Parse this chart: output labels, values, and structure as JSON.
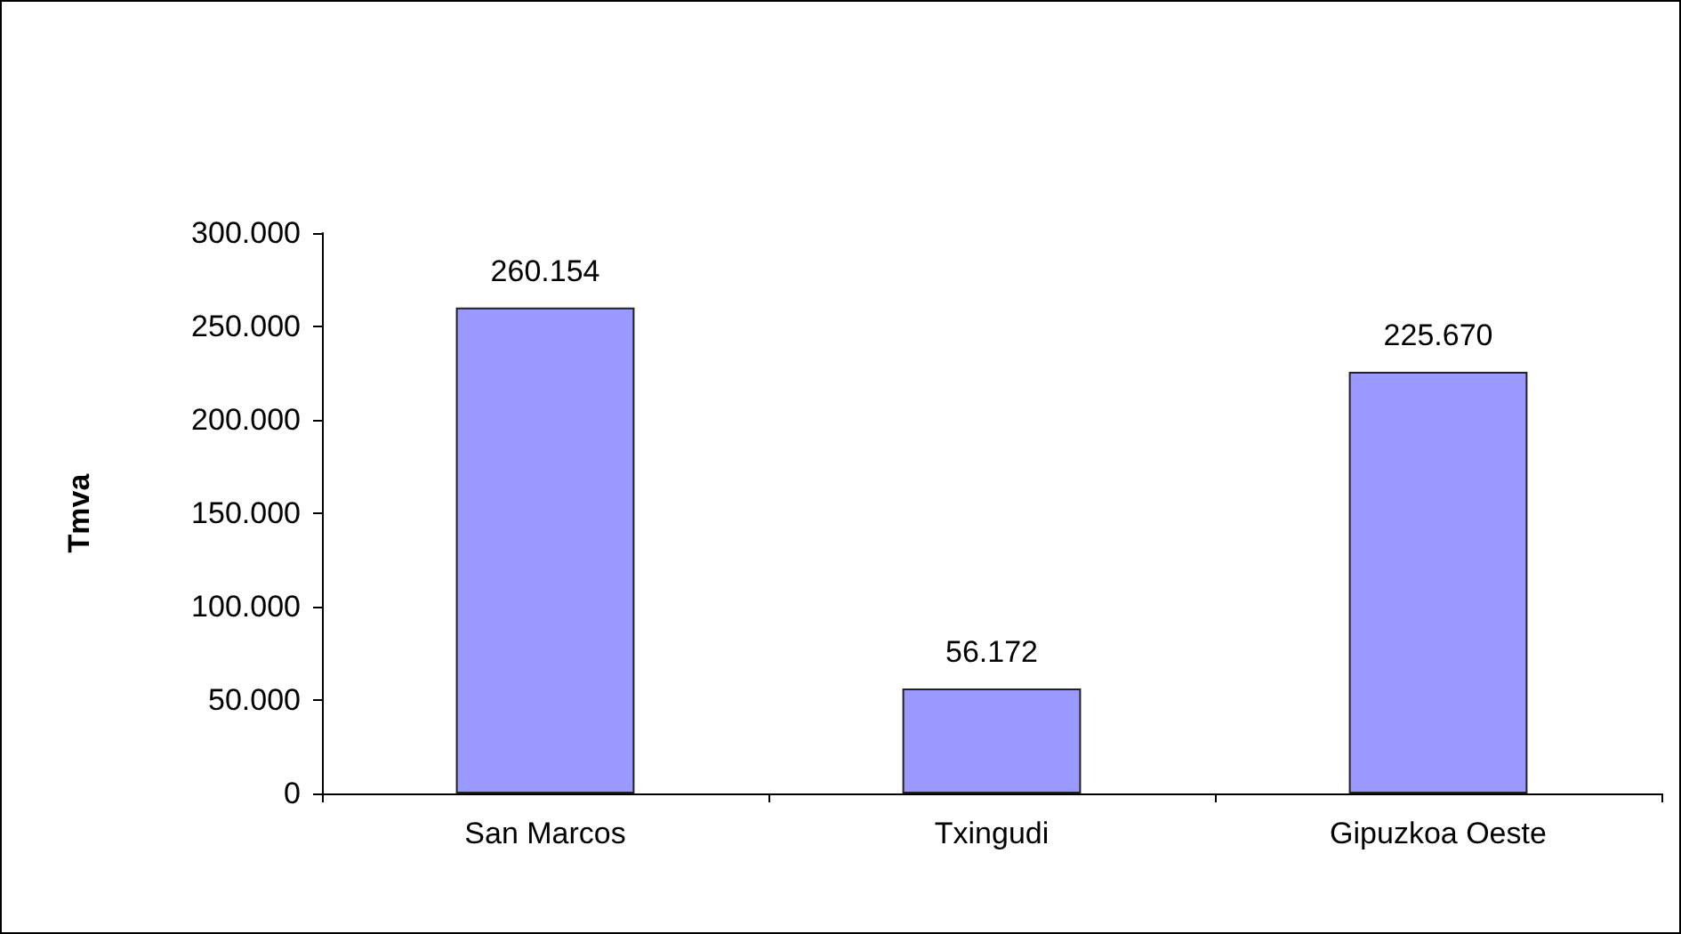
{
  "chart_data": {
    "type": "bar",
    "ylabel": "Tmva",
    "categories": [
      "San Marcos",
      "Txingudi",
      "Gipuzkoa Oeste"
    ],
    "values": [
      260154,
      56172,
      225670
    ],
    "value_labels": [
      "260.154",
      "56.172",
      "225.670"
    ],
    "color": "#9999ff",
    "ylim": [
      0,
      300000
    ],
    "yticks": [
      {
        "value": 0,
        "label": "0"
      },
      {
        "value": 50000,
        "label": "50.000"
      },
      {
        "value": 100000,
        "label": "100.000"
      },
      {
        "value": 150000,
        "label": "150.000"
      },
      {
        "value": 200000,
        "label": "200.000"
      },
      {
        "value": 250000,
        "label": "250.000"
      },
      {
        "value": 300000,
        "label": "300.000"
      }
    ],
    "grid": false
  }
}
